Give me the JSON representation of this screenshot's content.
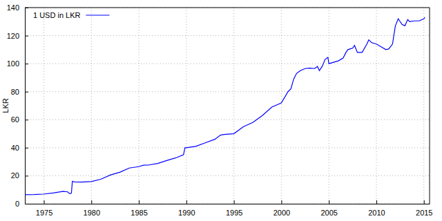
{
  "chart_data": {
    "type": "line",
    "y_label": "LKR",
    "x": [
      1973.0,
      1974.0,
      1975.0,
      1976.0,
      1977.0,
      1977.5,
      1977.7,
      1977.9,
      1978.0,
      1978.2,
      1979.0,
      1980.0,
      1981.0,
      1982.0,
      1983.0,
      1984.0,
      1985.0,
      1985.5,
      1986.0,
      1987.0,
      1988.0,
      1989.0,
      1989.7,
      1989.85,
      1990.0,
      1991.0,
      1992.0,
      1993.0,
      1993.6,
      1994.0,
      1995.0,
      1996.0,
      1997.0,
      1998.0,
      1999.0,
      2000.0,
      2000.7,
      2001.0,
      2001.3,
      2001.6,
      2002.0,
      2002.5,
      2003.0,
      2003.5,
      2003.8,
      2004.0,
      2004.3,
      2004.6,
      2004.9,
      2005.0,
      2005.5,
      2006.0,
      2006.5,
      2006.8,
      2007.0,
      2007.5,
      2007.7,
      2008.0,
      2008.5,
      2009.0,
      2009.2,
      2009.5,
      2010.0,
      2010.5,
      2011.0,
      2011.3,
      2011.7,
      2012.0,
      2012.3,
      2012.5,
      2012.7,
      2013.0,
      2013.3,
      2013.5,
      2014.0,
      2014.5,
      2015.0,
      2015.1
    ],
    "series": [
      {
        "name": "1 USD in LKR",
        "color": "#0000ff",
        "values": [
          6.5,
          6.6,
          6.9,
          7.7,
          8.8,
          8.5,
          7.2,
          7.5,
          16.0,
          15.6,
          15.5,
          15.8,
          17.5,
          20.5,
          22.5,
          25.5,
          26.5,
          27.5,
          27.6,
          28.8,
          31.0,
          33.0,
          35.0,
          40.0,
          40.0,
          41.0,
          43.5,
          46.0,
          49.0,
          49.5,
          50.0,
          55.0,
          58.0,
          63.0,
          69.0,
          72.0,
          80.0,
          82.0,
          89.0,
          93.0,
          95.0,
          96.5,
          96.8,
          96.5,
          98.0,
          95.0,
          98.0,
          103.0,
          104.5,
          100.0,
          101.0,
          102.0,
          104.0,
          108.0,
          110.0,
          111.0,
          113.0,
          108.0,
          108.0,
          114.0,
          117.0,
          115.0,
          114.0,
          112.0,
          110.0,
          110.5,
          114.0,
          127.0,
          132.0,
          130.0,
          128.0,
          127.0,
          131.5,
          130.0,
          130.5,
          130.5,
          132.0,
          133.0
        ]
      }
    ],
    "xlim": [
      1973,
      2015.6
    ],
    "xticks": [
      1975,
      1980,
      1985,
      1990,
      1995,
      2000,
      2005,
      2010,
      2015
    ],
    "ylim": [
      0,
      140
    ],
    "yticks": [
      0,
      20,
      40,
      60,
      80,
      100,
      120,
      140
    ],
    "grid": true,
    "legend": "upper left"
  }
}
